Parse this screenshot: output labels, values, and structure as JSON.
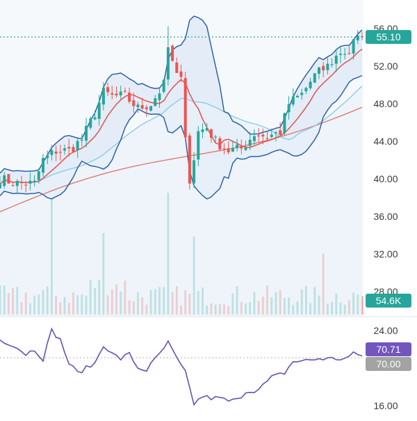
{
  "chart_data": [
    {
      "type": "candlestick",
      "price_axis": {
        "range": [
          27,
          57
        ],
        "ticks": [
          "56.00",
          "52.00",
          "48.00",
          "44.00",
          "40.00",
          "36.00",
          "32.00",
          "28.00"
        ]
      },
      "last_price_label": "55.10",
      "last_price": 55.1,
      "volume_label": "54.6K",
      "colors": {
        "up": "#26a69a",
        "down": "#ef5350",
        "bollinger": "#2a62a8",
        "ma_fast": "#e05a55",
        "ma_slow": "#8ccbea",
        "ma_long": "#e07a72",
        "background_fill": "#edf3f9"
      },
      "price_path_keypoints": [
        [
          0,
          40.0
        ],
        [
          4,
          39.5
        ],
        [
          8,
          39.5
        ],
        [
          10,
          42.0
        ],
        [
          13,
          43.0
        ],
        [
          16,
          43.0
        ],
        [
          19,
          44.2
        ],
        [
          22,
          47.0
        ],
        [
          24,
          49.2
        ],
        [
          26,
          48.8
        ],
        [
          29,
          48.8
        ],
        [
          32,
          47.5
        ],
        [
          35,
          48.0
        ],
        [
          38,
          50.0
        ],
        [
          39,
          54.0
        ],
        [
          41,
          51.0
        ],
        [
          42,
          50.4
        ],
        [
          44,
          39.5
        ],
        [
          46,
          45.0
        ],
        [
          48,
          45.5
        ],
        [
          50,
          44.0
        ],
        [
          53,
          43.0
        ],
        [
          56,
          43.2
        ],
        [
          59,
          44.8
        ],
        [
          62,
          44.5
        ],
        [
          65,
          45.0
        ],
        [
          67,
          48.0
        ],
        [
          70,
          49.0
        ],
        [
          73,
          51.0
        ],
        [
          76,
          52.0
        ],
        [
          79,
          53.5
        ],
        [
          81,
          53.5
        ],
        [
          82,
          54.5
        ],
        [
          84,
          55.1
        ]
      ],
      "volume_spikes": [
        {
          "bar": 12,
          "height": 1.0
        },
        {
          "bar": 24,
          "height": 0.67
        },
        {
          "bar": 39,
          "height": 1.0
        },
        {
          "bar": 45,
          "height": 0.64
        },
        {
          "bar": 75,
          "height": 0.5
        }
      ]
    },
    {
      "type": "line",
      "indicator": "oscillator",
      "ticks": [
        "24.00",
        "16.00"
      ],
      "range": [
        14,
        26
      ],
      "value_label": "70.71",
      "level_label": "70.00",
      "colors": {
        "line": "#6a4fb3",
        "value_badge": "#7256bd",
        "level_badge": "#a3a3a3"
      },
      "keypoints": [
        [
          0,
          23.0
        ],
        [
          3,
          22.5
        ],
        [
          6,
          21.5
        ],
        [
          8,
          22.0
        ],
        [
          10,
          21.0
        ],
        [
          12,
          24.0
        ],
        [
          14,
          23.0
        ],
        [
          16,
          20.5
        ],
        [
          18,
          19.5
        ],
        [
          20,
          20.0
        ],
        [
          22,
          20.5
        ],
        [
          24,
          22.5
        ],
        [
          26,
          21.5
        ],
        [
          28,
          21.0
        ],
        [
          30,
          21.5
        ],
        [
          32,
          20.0
        ],
        [
          34,
          19.8
        ],
        [
          37,
          21.5
        ],
        [
          39,
          22.7
        ],
        [
          41,
          21.0
        ],
        [
          43,
          19.5
        ],
        [
          45,
          16.2
        ],
        [
          47,
          17.0
        ],
        [
          49,
          16.8
        ],
        [
          51,
          16.8
        ],
        [
          53,
          16.5
        ],
        [
          55,
          16.6
        ],
        [
          57,
          17.5
        ],
        [
          60,
          17.7
        ],
        [
          63,
          19.0
        ],
        [
          66,
          19.5
        ],
        [
          68,
          20.7
        ],
        [
          71,
          20.8
        ],
        [
          74,
          21.0
        ],
        [
          77,
          21.0
        ],
        [
          80,
          21.0
        ],
        [
          82,
          21.5
        ],
        [
          84,
          21.3
        ]
      ]
    }
  ]
}
